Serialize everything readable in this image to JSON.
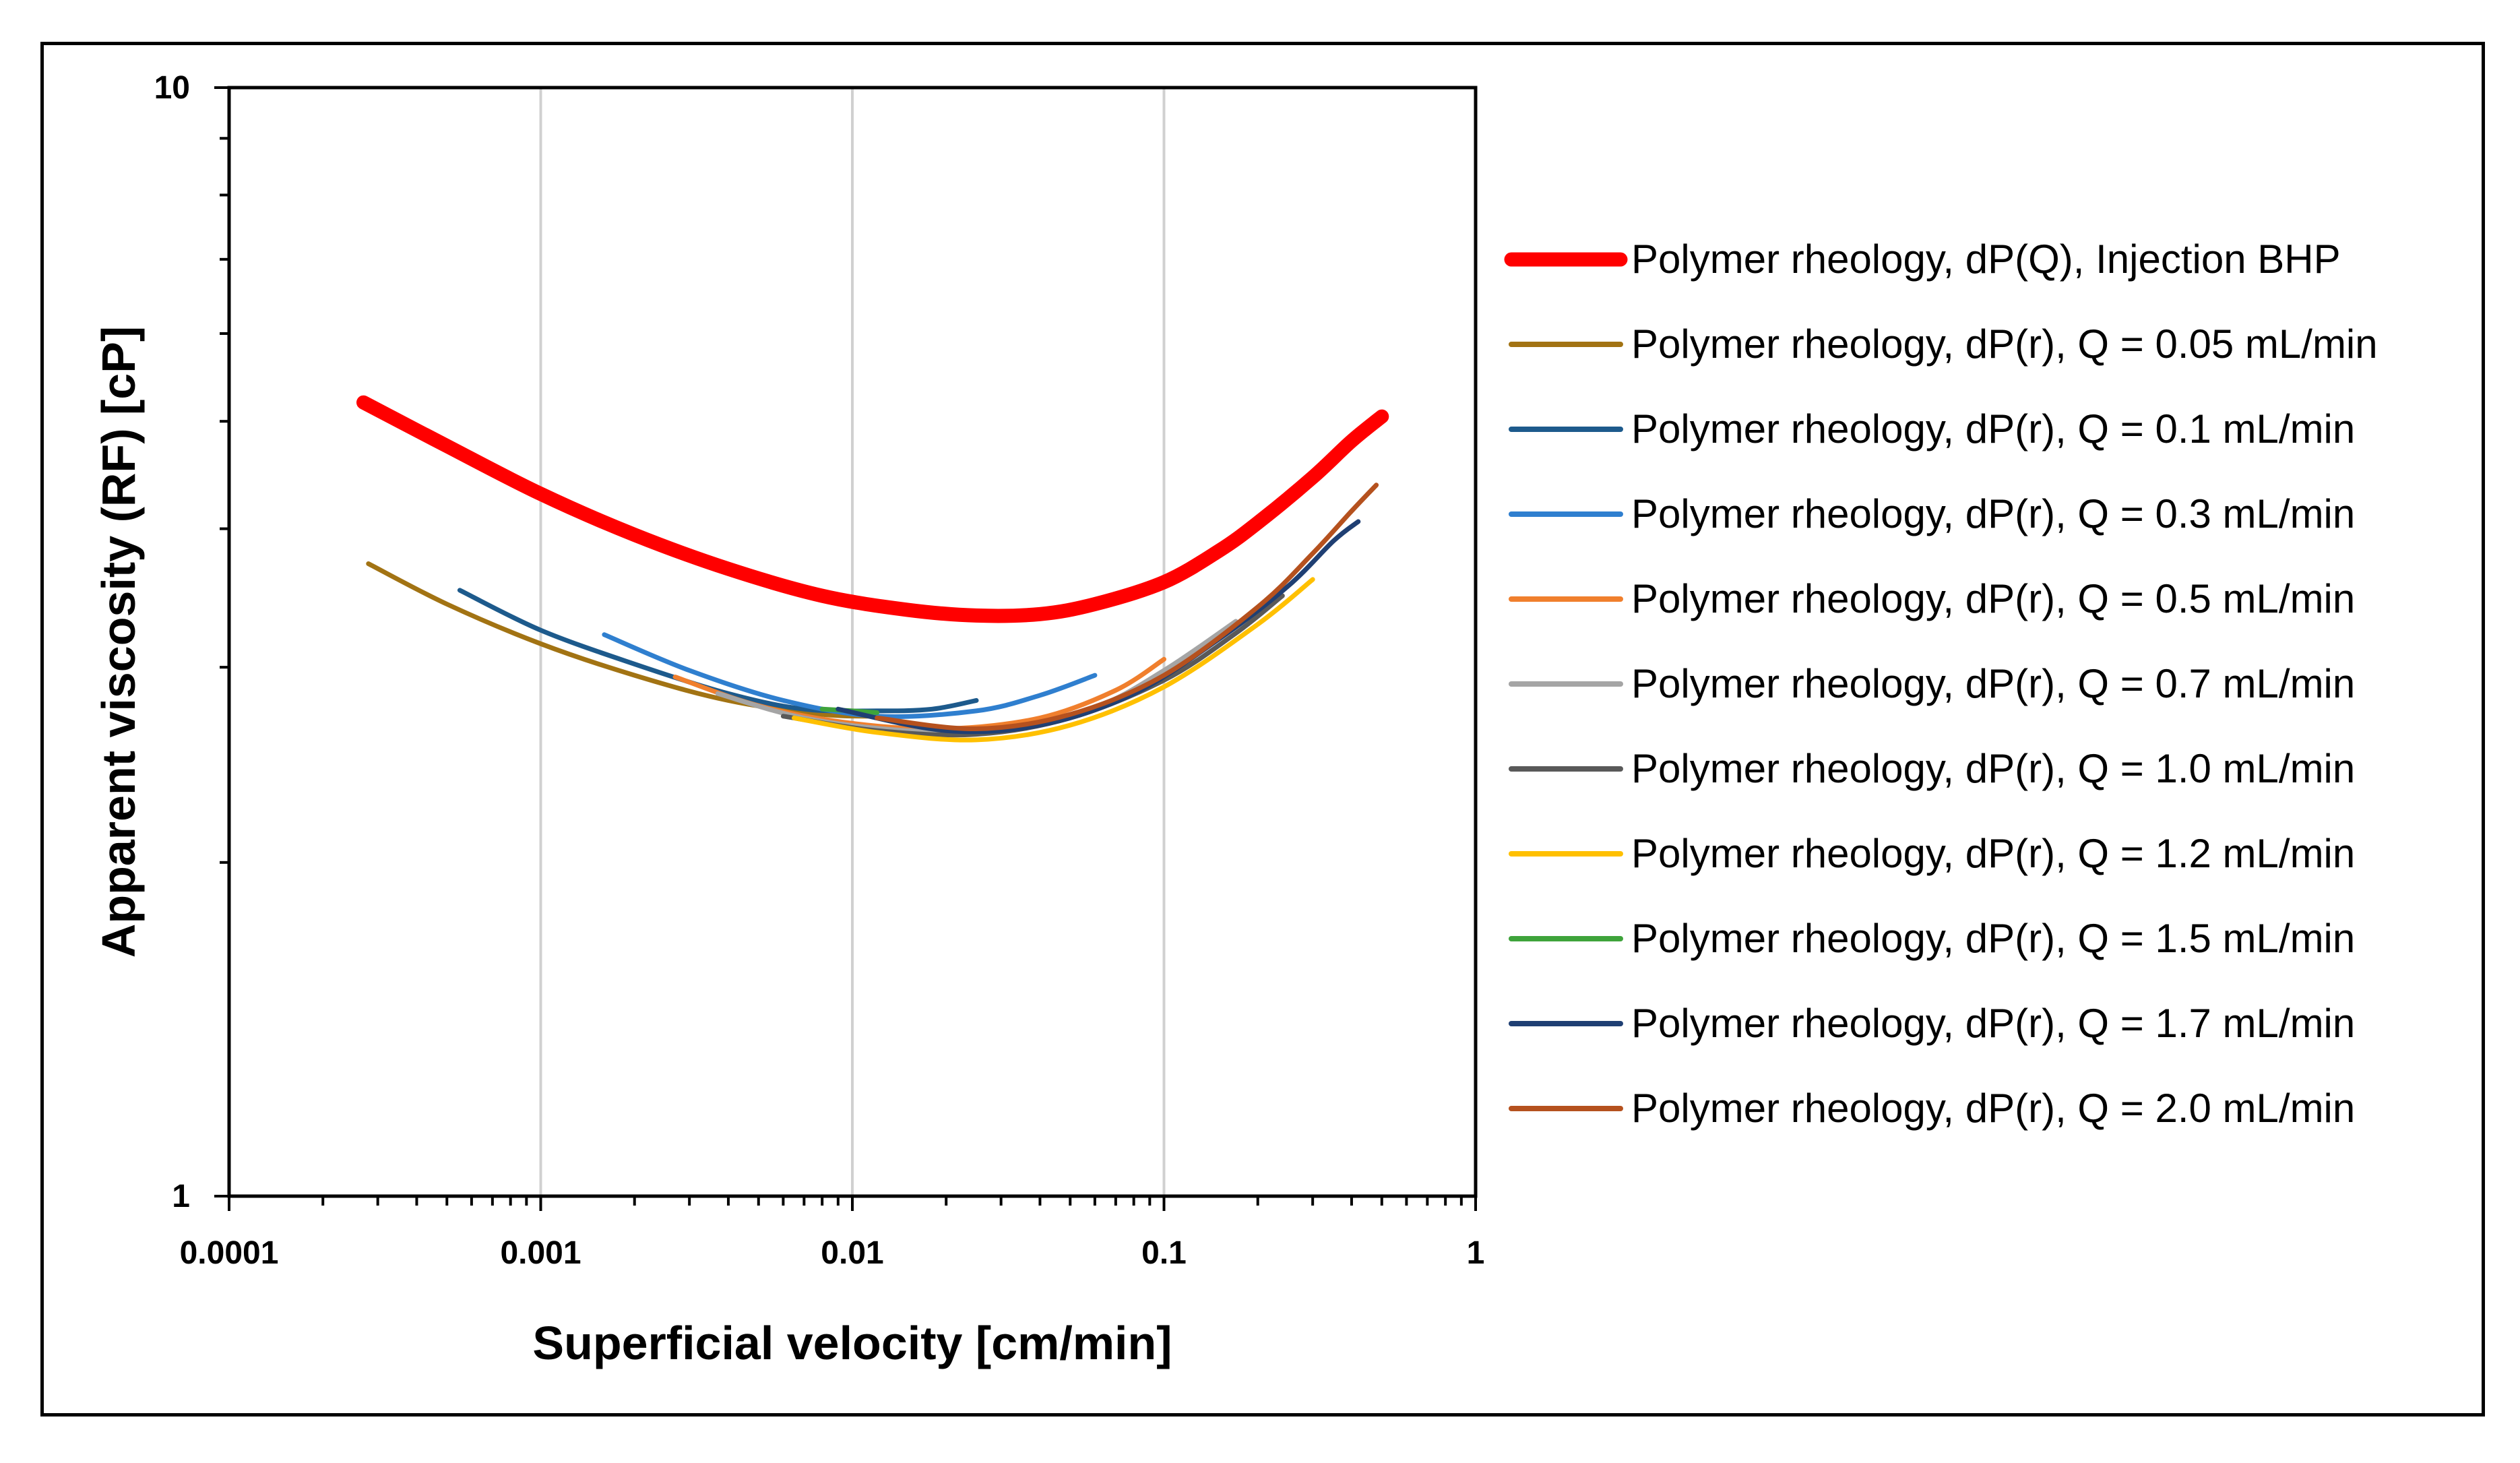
{
  "chart_data": {
    "type": "line",
    "title": "",
    "xlabel": "Superficial velocity [cm/min]",
    "ylabel": "Apparent viscosity (RF) [cP]",
    "xscale": "log",
    "yscale": "log",
    "xlim": [
      0.0001,
      1
    ],
    "ylim": [
      1,
      10
    ],
    "x_ticks": [
      "0.0001",
      "0.001",
      "0.01",
      "0.1",
      "1"
    ],
    "y_ticks": [
      "1",
      "10"
    ],
    "vertical_grid": true,
    "legend_position": "right",
    "series": [
      {
        "name": "Polymer rheology, dP(Q), Injection BHP",
        "color": "#ff0000",
        "width": "thick",
        "x": [
          0.00027,
          0.0005,
          0.001,
          0.002,
          0.004,
          0.008,
          0.015,
          0.025,
          0.04,
          0.06,
          0.1,
          0.15,
          0.2,
          0.3,
          0.4,
          0.5
        ],
        "y": [
          5.2,
          4.75,
          4.3,
          3.95,
          3.68,
          3.48,
          3.38,
          3.34,
          3.35,
          3.42,
          3.58,
          3.82,
          4.05,
          4.45,
          4.8,
          5.05
        ]
      },
      {
        "name": "Polymer rheology, dP(r), Q = 0.05 mL/min",
        "color": "#a27313",
        "x": [
          0.00028,
          0.0005,
          0.001,
          0.002,
          0.004,
          0.008,
          0.012
        ],
        "y": [
          3.72,
          3.42,
          3.15,
          2.95,
          2.8,
          2.72,
          2.71
        ]
      },
      {
        "name": "Polymer rheology, dP(r), Q = 0.1 mL/min",
        "color": "#1d5a8c",
        "x": [
          0.00055,
          0.001,
          0.002,
          0.004,
          0.007,
          0.012,
          0.018,
          0.025
        ],
        "y": [
          3.52,
          3.24,
          3.02,
          2.84,
          2.75,
          2.74,
          2.75,
          2.8
        ]
      },
      {
        "name": "Polymer rheology, dP(r), Q = 0.3 mL/min",
        "color": "#2f7fcf",
        "x": [
          0.0016,
          0.003,
          0.006,
          0.012,
          0.025,
          0.04,
          0.06
        ],
        "y": [
          3.21,
          2.98,
          2.8,
          2.71,
          2.74,
          2.83,
          2.95
        ]
      },
      {
        "name": "Polymer rheology, dP(r), Q = 0.5 mL/min",
        "color": "#f07f2d",
        "x": [
          0.0027,
          0.005,
          0.01,
          0.02,
          0.04,
          0.07,
          0.1
        ],
        "y": [
          2.94,
          2.77,
          2.67,
          2.64,
          2.7,
          2.86,
          3.05
        ]
      },
      {
        "name": "Polymer rheology, dP(r), Q = 0.7 mL/min",
        "color": "#a5a5a5",
        "x": [
          0.0037,
          0.007,
          0.015,
          0.03,
          0.06,
          0.1,
          0.17
        ],
        "y": [
          2.84,
          2.7,
          2.63,
          2.64,
          2.76,
          2.98,
          3.3
        ]
      },
      {
        "name": "Polymer rheology, dP(r), Q = 1.0 mL/min",
        "color": "#595959",
        "x": [
          0.006,
          0.012,
          0.025,
          0.05,
          0.1,
          0.17,
          0.24
        ],
        "y": [
          2.71,
          2.63,
          2.61,
          2.7,
          2.92,
          3.22,
          3.48
        ]
      },
      {
        "name": "Polymer rheology, dP(r), Q = 1.2 mL/min",
        "color": "#ffc000",
        "x": [
          0.0065,
          0.012,
          0.025,
          0.05,
          0.1,
          0.2,
          0.3
        ],
        "y": [
          2.7,
          2.62,
          2.58,
          2.66,
          2.88,
          3.28,
          3.6
        ]
      },
      {
        "name": "Polymer rheology, dP(r), Q = 1.5 mL/min",
        "color": "#3ea33b",
        "x": [
          0.008,
          0.01,
          0.012
        ],
        "y": [
          2.75,
          2.74,
          2.73
        ]
      },
      {
        "name": "Polymer rheology, dP(r), Q = 1.7 mL/min",
        "color": "#1f3f73",
        "x": [
          0.009,
          0.02,
          0.04,
          0.08,
          0.15,
          0.25,
          0.35,
          0.42
        ],
        "y": [
          2.75,
          2.63,
          2.66,
          2.84,
          3.18,
          3.55,
          3.9,
          4.06
        ]
      },
      {
        "name": "Polymer rheology, dP(r), Q = 2.0 mL/min",
        "color": "#b5511e",
        "x": [
          0.012,
          0.025,
          0.05,
          0.1,
          0.2,
          0.3,
          0.4,
          0.48
        ],
        "y": [
          2.7,
          2.64,
          2.72,
          2.95,
          3.4,
          3.8,
          4.15,
          4.38
        ]
      }
    ]
  }
}
